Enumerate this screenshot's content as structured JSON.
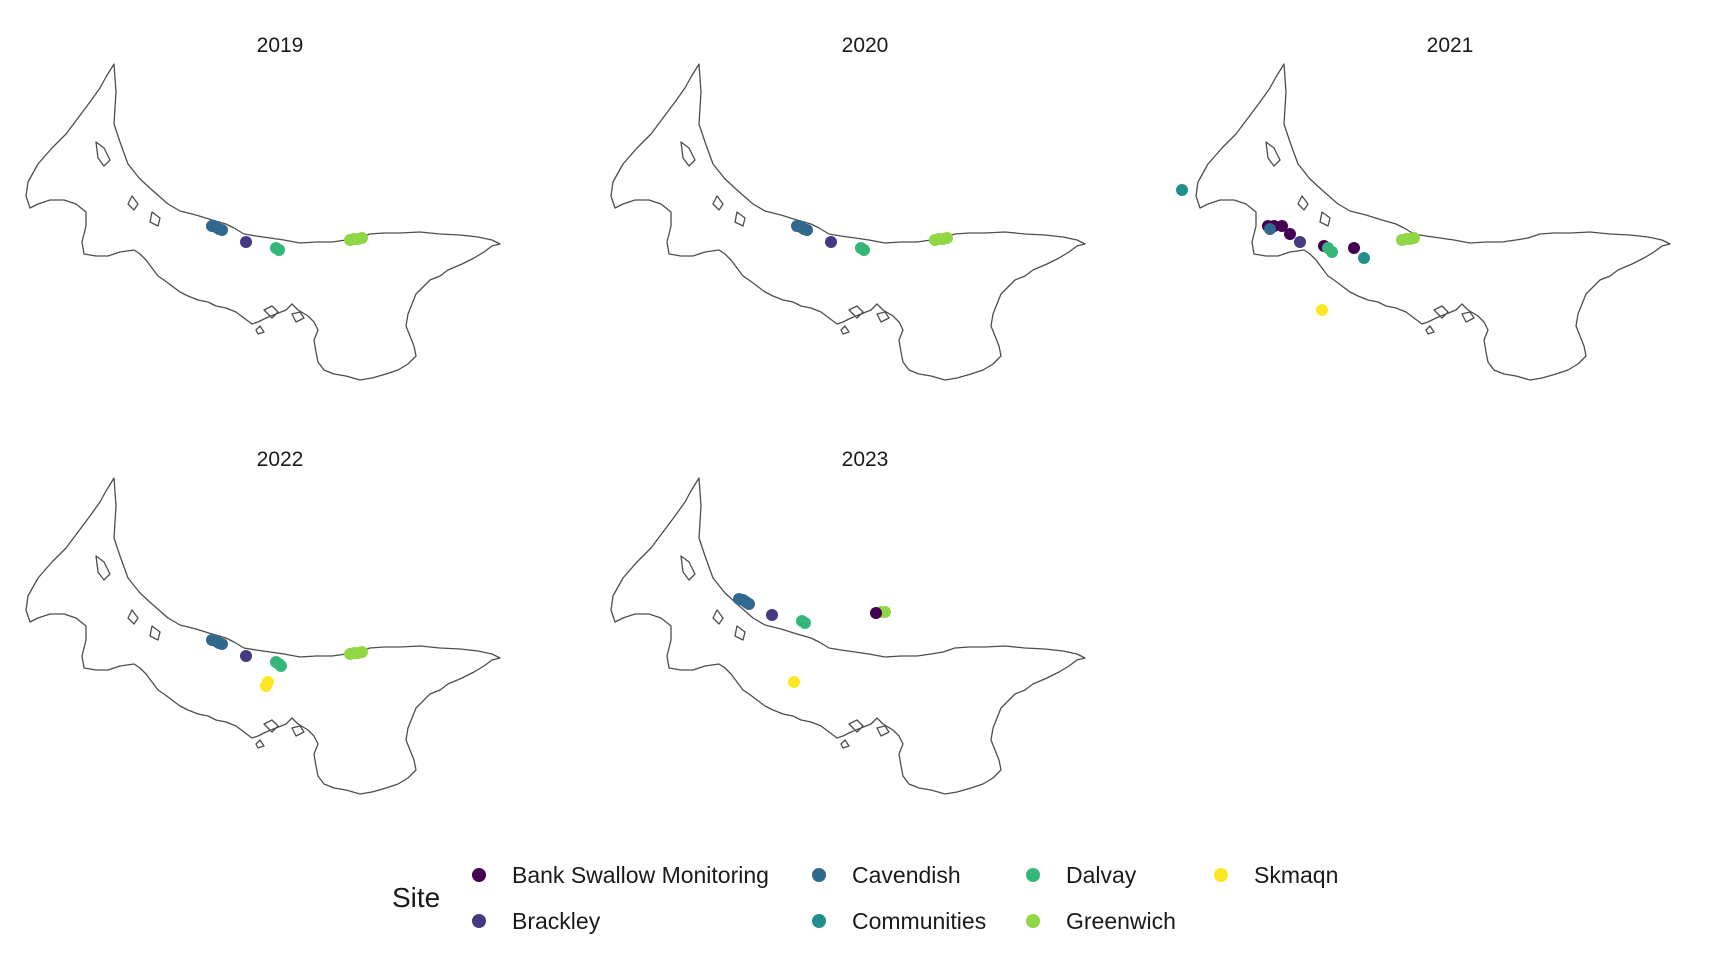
{
  "chart_data": {
    "type": "scatter",
    "facet": "year",
    "panels": [
      {
        "year": "2019",
        "points": [
          "Cavendish",
          "Brackley",
          "Dalvay",
          "Greenwich"
        ]
      },
      {
        "year": "2020",
        "points": [
          "Cavendish",
          "Brackley",
          "Dalvay",
          "Greenwich"
        ]
      },
      {
        "year": "2021",
        "points": [
          "Communities",
          "Bank Swallow Monitoring",
          "Cavendish",
          "Brackley",
          "Dalvay",
          "Communities",
          "Greenwich",
          "Skmaqn"
        ]
      },
      {
        "year": "2022",
        "points": [
          "Cavendish",
          "Brackley",
          "Dalvay",
          "Greenwich",
          "Skmaqn"
        ]
      },
      {
        "year": "2023",
        "points": [
          "Cavendish",
          "Brackley",
          "Dalvay",
          "Bank Swallow Monitoring",
          "Greenwich",
          "Skmaqn"
        ]
      }
    ],
    "legend": {
      "title": "Site",
      "position": "bottom",
      "items": [
        {
          "label": "Bank Swallow Monitoring",
          "color": "#440154"
        },
        {
          "label": "Brackley",
          "color": "#443a83"
        },
        {
          "label": "Cavendish",
          "color": "#31688e"
        },
        {
          "label": "Communities",
          "color": "#21908d"
        },
        {
          "label": "Dalvay",
          "color": "#35b779"
        },
        {
          "label": "Greenwich",
          "color": "#8fd744"
        },
        {
          "label": "Skmaqn",
          "color": "#fde725"
        }
      ]
    },
    "grid": false
  }
}
